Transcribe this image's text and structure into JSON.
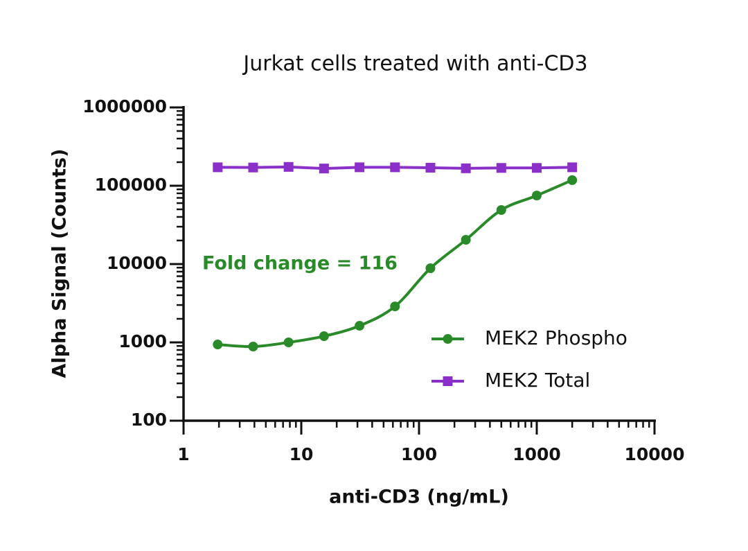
{
  "chart_data": {
    "type": "scatter",
    "title": "Jurkat cells treated with anti-CD3",
    "xlabel": "anti-CD3 (ng/mL)",
    "ylabel": "Alpha Signal (Counts)",
    "annotation": "Fold change = 116",
    "xscale": "log",
    "yscale": "log",
    "xlim": [
      1,
      10000
    ],
    "xticks": [
      1,
      10,
      100,
      1000,
      10000
    ],
    "ylim": [
      100,
      1000000
    ],
    "yticks": [
      100,
      1000,
      10000,
      100000,
      1000000
    ],
    "legend": "lower right",
    "series": [
      {
        "name": "MEK2 Phospho",
        "color": "#2a8a2a",
        "marker": "circle",
        "line": "smooth",
        "x": [
          1.95,
          3.9,
          7.8,
          15.6,
          31.25,
          62.5,
          125,
          250,
          500,
          1000,
          2000
        ],
        "values": [
          940,
          885,
          1000,
          1200,
          1630,
          2880,
          8850,
          20400,
          49000,
          75000,
          118000
        ]
      },
      {
        "name": "MEK2 Total",
        "color": "#8b2fc9",
        "marker": "square",
        "line": "straight",
        "x": [
          1.95,
          3.9,
          7.8,
          15.6,
          31.25,
          62.5,
          125,
          250,
          500,
          1000,
          2000
        ],
        "values": [
          172000,
          171000,
          174000,
          166000,
          172000,
          172000,
          170000,
          167000,
          169000,
          169000,
          172000
        ]
      }
    ]
  }
}
